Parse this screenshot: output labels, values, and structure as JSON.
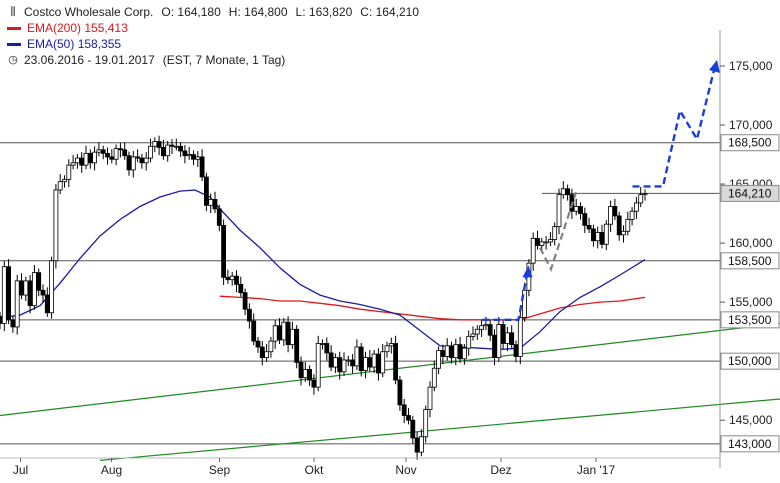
{
  "legend": {
    "symbol": "Costco Wholesale Corp.",
    "open_label": "O:",
    "open": "164,180",
    "high_label": "H:",
    "high": "164,800",
    "low_label": "L:",
    "low": "163,820",
    "close_label": "C:",
    "close": "164,210",
    "ema200_label": "EMA(200)",
    "ema200_value": "155,413",
    "ema50_label": "EMA(50)",
    "ema50_value": "158,355",
    "period": "23.06.2016 - 19.01.2017",
    "period_detail": "(EST, 7 Monate, 1 Tag)"
  },
  "colors": {
    "ema200": "#e01818",
    "ema50": "#1a1aa8",
    "trend": "#1f8a1f",
    "projection_up": "#1a3fd6",
    "projection_alt": "#808080",
    "hline": "#555555",
    "candle": "#000000"
  },
  "chart_data": {
    "type": "candlestick",
    "y_axis_side": "right",
    "ylim": [
      141.8,
      177.2
    ],
    "y_ticks": [
      "175,000",
      "170,000",
      "165,000",
      "160,000",
      "155,000",
      "150,000",
      "145,000"
    ],
    "y_tick_values": [
      175,
      170,
      165,
      160,
      155,
      150,
      145
    ],
    "x_months": [
      "Jul",
      "Aug",
      "Sep",
      "Okt",
      "Nov",
      "Dez",
      "Jan '17"
    ],
    "x_month_index": [
      20.5,
      111.5,
      219.5,
      314,
      406,
      501,
      596
    ],
    "horizontal_levels": [
      {
        "value": 168.5,
        "label": "168,500"
      },
      {
        "value": 164.21,
        "label": "164,210",
        "highlight": true
      },
      {
        "value": 158.5,
        "label": "158,500"
      },
      {
        "value": 153.5,
        "label": "153,500"
      },
      {
        "value": 150.0,
        "label": "150,000"
      },
      {
        "value": 143.0,
        "label": "143,000"
      }
    ],
    "candles_close": [
      153.2,
      158.0,
      153.5,
      152.9,
      156.8,
      155.6,
      156.8,
      154.7,
      157.5,
      156.0,
      155.6,
      154.1,
      158.5,
      164.5,
      165.2,
      165.4,
      166.6,
      166.8,
      167.2,
      166.6,
      167.6,
      166.8,
      167.7,
      167.9,
      167.6,
      167.3,
      167.1,
      168.0,
      167.9,
      167.4,
      166.2,
      167.3,
      167.2,
      166.8,
      167.2,
      168.2,
      168.6,
      168.1,
      167.4,
      168.3,
      168.2,
      168.2,
      167.8,
      167.4,
      167.5,
      167.1,
      167.3,
      165.6,
      163.2,
      163.7,
      162.9,
      161.5,
      157.1,
      156.9,
      157.2,
      156.5,
      155.8,
      154.4,
      153.4,
      151.7,
      151.2,
      150.3,
      150.8,
      151.7,
      153.0,
      151.8,
      153.3,
      151.4,
      152.7,
      149.9,
      148.6,
      149.3,
      148.4,
      147.8,
      151.5,
      151.5,
      150.7,
      149.5,
      150.3,
      149.1,
      150.1,
      150.1,
      149.6,
      151.2,
      149.2,
      150.3,
      149.5,
      150.6,
      149.0,
      150.8,
      151.3,
      151.5,
      148.4,
      146.3,
      145.4,
      145.0,
      143.5,
      142.3,
      143.6,
      145.9,
      147.8,
      149.4,
      150.9,
      150.4,
      151.3,
      150.3,
      151.4,
      150.2,
      151.1,
      152.1,
      152.3,
      152.7,
      153.0,
      153.1,
      152.2,
      150.3,
      153.1,
      151.5,
      152.4,
      151.4,
      150.4,
      153.7,
      156.0,
      158.3,
      160.4,
      159.8,
      160.1,
      160.1,
      160.3,
      161.4,
      164.1,
      164.6,
      164.1,
      162.7,
      163.1,
      162.5,
      161.5,
      161.2,
      160.2,
      160.9,
      159.9,
      161.6,
      163.1,
      162.3,
      160.7,
      161.0,
      162.0,
      162.7,
      163.4,
      164.1,
      164.2
    ],
    "ema200": [
      [
        220.0,
        155.5
      ],
      [
        240.0,
        155.4
      ],
      [
        260.0,
        155.3
      ],
      [
        280.0,
        155.1
      ],
      [
        300.0,
        155.1
      ],
      [
        320.0,
        154.9
      ],
      [
        340.0,
        154.7
      ],
      [
        360.0,
        154.4
      ],
      [
        380.0,
        154.2
      ],
      [
        400.0,
        154.0
      ],
      [
        420.0,
        153.8
      ],
      [
        440.0,
        153.6
      ],
      [
        460.0,
        153.5
      ],
      [
        480.0,
        153.5
      ],
      [
        500.0,
        153.5
      ],
      [
        520.0,
        153.5
      ],
      [
        540.0,
        154.0
      ],
      [
        560.0,
        154.5
      ],
      [
        580.0,
        154.8
      ],
      [
        600.0,
        155.0
      ],
      [
        620.0,
        155.1
      ],
      [
        645.0,
        155.4
      ]
    ],
    "ema50": [
      [
        0.0,
        153.7
      ],
      [
        20.0,
        153.9
      ],
      [
        40.0,
        154.7
      ],
      [
        60.0,
        156.6
      ],
      [
        80.0,
        158.7
      ],
      [
        100.0,
        160.6
      ],
      [
        120.0,
        162.0
      ],
      [
        140.0,
        163.1
      ],
      [
        160.0,
        163.9
      ],
      [
        180.0,
        164.4
      ],
      [
        195.0,
        164.5
      ],
      [
        210.0,
        163.9
      ],
      [
        220.0,
        162.9
      ],
      [
        240.0,
        161.1
      ],
      [
        260.0,
        159.6
      ],
      [
        280.0,
        157.9
      ],
      [
        300.0,
        156.5
      ],
      [
        320.0,
        155.6
      ],
      [
        340.0,
        155.1
      ],
      [
        360.0,
        154.8
      ],
      [
        380.0,
        154.4
      ],
      [
        400.0,
        153.9
      ],
      [
        420.0,
        152.6
      ],
      [
        440.0,
        151.3
      ],
      [
        460.0,
        151.2
      ],
      [
        480.0,
        151.1
      ],
      [
        500.0,
        151.0
      ],
      [
        520.0,
        151.1
      ],
      [
        540.0,
        152.5
      ],
      [
        560.0,
        154.2
      ],
      [
        580.0,
        155.4
      ],
      [
        600.0,
        156.3
      ],
      [
        620.0,
        157.3
      ],
      [
        645.0,
        158.6
      ]
    ],
    "trend_lines": [
      [
        [
          0.0,
          145.4
        ],
        [
          780.0,
          153.2
        ]
      ],
      [
        [
          100.0,
          141.6
        ],
        [
          780.0,
          146.8
        ]
      ]
    ],
    "projection_up": [
      [
        482.5,
        153.5
      ],
      [
        518.5,
        153.5
      ],
      [
        527.5,
        157.6
      ]
    ],
    "projection_up_top": [
      [
        632.5,
        164.8
      ],
      [
        663.0,
        164.8
      ],
      [
        680.0,
        171.2
      ],
      [
        697.0,
        168.8
      ],
      [
        715.0,
        175.0
      ]
    ],
    "projection_alt": [
      [
        540.0,
        159.6
      ],
      [
        551.0,
        157.8
      ],
      [
        576.0,
        164.3
      ]
    ]
  }
}
